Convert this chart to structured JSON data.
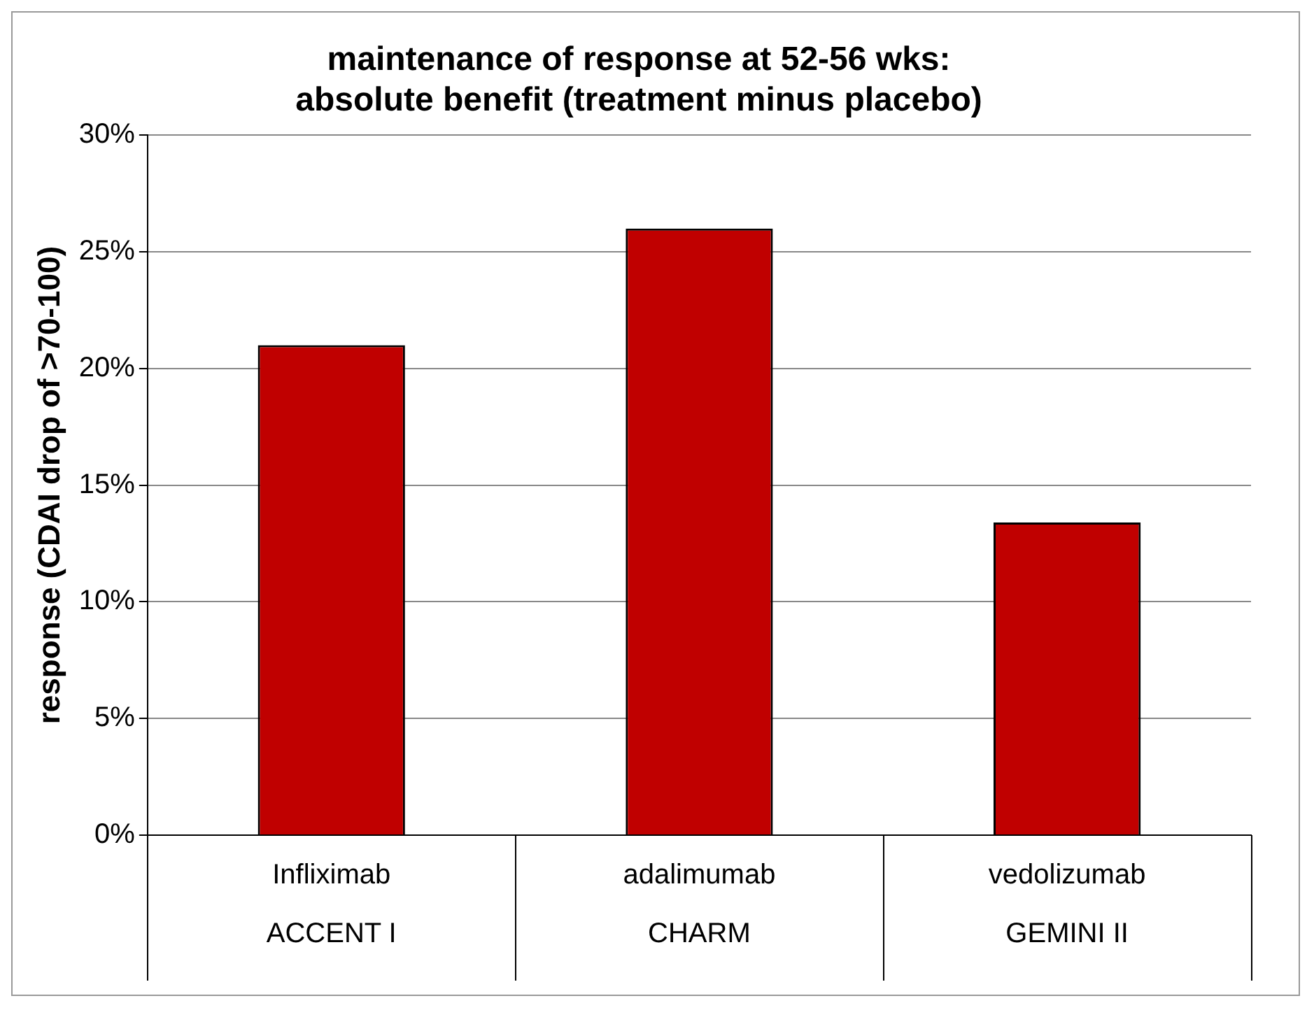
{
  "chart_data": {
    "type": "bar",
    "title": "maintenance of response at 52-56 wks:\nabsolute benefit (treatment minus placebo)",
    "ylabel": "response (CDAI drop of >70-100)",
    "categories": [
      "Infliximab\nACCENT I",
      "adalimumab\nCHARM",
      "vedolizumab\nGEMINI II"
    ],
    "values": [
      21,
      26,
      13.4
    ],
    "color": "#c00000",
    "ylim": [
      0,
      30
    ],
    "yticks": [
      {
        "value": 0,
        "label": "0%"
      },
      {
        "value": 5,
        "label": "5%"
      },
      {
        "value": 10,
        "label": "10%"
      },
      {
        "value": 15,
        "label": "15%"
      },
      {
        "value": 20,
        "label": "20%"
      },
      {
        "value": 25,
        "label": "25%"
      },
      {
        "value": 30,
        "label": "30%"
      }
    ],
    "grid": "y",
    "legend": false
  }
}
